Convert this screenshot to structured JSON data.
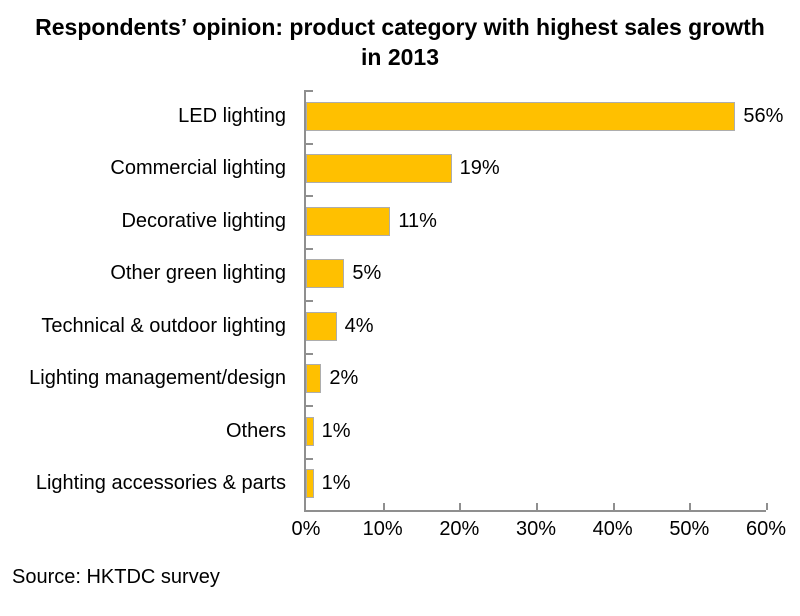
{
  "source": "Source: HKTDC survey",
  "chart_data": {
    "type": "bar",
    "orientation": "horizontal",
    "title": "Respondents’ opinion: product category with highest sales growth in 2013",
    "categories": [
      "LED lighting",
      "Commercial lighting",
      "Decorative lighting",
      "Other green lighting",
      "Technical & outdoor lighting",
      "Lighting management/design",
      "Others",
      "Lighting accessories & parts"
    ],
    "values": [
      56,
      19,
      11,
      5,
      4,
      2,
      1,
      1
    ],
    "value_labels": [
      "56%",
      "19%",
      "11%",
      "5%",
      "4%",
      "2%",
      "1%",
      "1%"
    ],
    "x_ticks": [
      "0%",
      "10%",
      "20%",
      "30%",
      "40%",
      "50%",
      "60%"
    ],
    "xlim": [
      0,
      60
    ],
    "grid": false,
    "legend": false,
    "bar_color": "#FFC000",
    "bar_border_color": "#ADADAD",
    "axis_color": "#8F8F8F",
    "text_color": "#000000"
  }
}
